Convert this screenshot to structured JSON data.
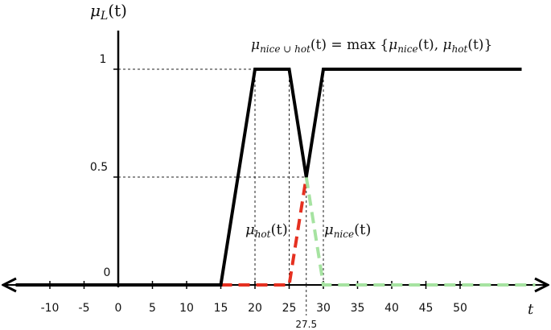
{
  "chart_data": {
    "type": "line",
    "title": "",
    "xlabel": "t",
    "ylabel": "μ_L(t)",
    "xlim": [
      -15,
      64
    ],
    "ylim": [
      0,
      1
    ],
    "x_ticks": [
      -10,
      -5,
      0,
      5,
      10,
      15,
      20,
      25,
      30,
      35,
      40,
      45,
      50
    ],
    "x_tick_labels": [
      "-10",
      "-5",
      "0",
      "5",
      "10",
      "15",
      "20",
      "25",
      "30",
      "35",
      "40",
      "45",
      "50"
    ],
    "y_ticks": [
      0,
      0.5,
      1
    ],
    "y_tick_labels": [
      "0",
      "0.5",
      "1"
    ],
    "extra_x_tick": {
      "value": 27.5,
      "label": "27.5"
    },
    "grid": false,
    "series": [
      {
        "name": "μ_hot(t)",
        "color": "#e53020",
        "style": "dashed",
        "x": [
          15,
          25,
          27.5
        ],
        "y": [
          0,
          0,
          0.5
        ]
      },
      {
        "name": "μ_nice(t)",
        "color": "#a6e3a1",
        "style": "dashed",
        "x": [
          27.5,
          30,
          61
        ],
        "y": [
          0.5,
          0,
          0
        ]
      },
      {
        "name": "",
        "color": "#000000",
        "style": "solid",
        "x": [
          -15,
          15,
          20,
          25,
          27.5,
          30,
          59
        ],
        "y": [
          0,
          0,
          1,
          1,
          0.5,
          1,
          1
        ]
      }
    ],
    "annotations": {
      "formula": "μnice ∪ hot(t) = max {μnice(t), μhot(t)}",
      "hot_label": "μhot(t)",
      "nice_label": "μnice(t)"
    },
    "guide_lines": [
      {
        "axis": "y",
        "value": 1,
        "from_x": 0,
        "to_x": 20
      },
      {
        "axis": "y",
        "value": 0.5,
        "from_x": 0,
        "to_x": 27.5
      },
      {
        "axis": "x",
        "value": 20,
        "from_y": 0,
        "to_y": 1
      },
      {
        "axis": "x",
        "value": 25,
        "from_y": 0,
        "to_y": 1
      },
      {
        "axis": "x",
        "value": 27.5,
        "from_y": 0,
        "to_y": 0.5
      },
      {
        "axis": "x",
        "value": 30,
        "from_y": 0,
        "to_y": 1
      }
    ]
  }
}
